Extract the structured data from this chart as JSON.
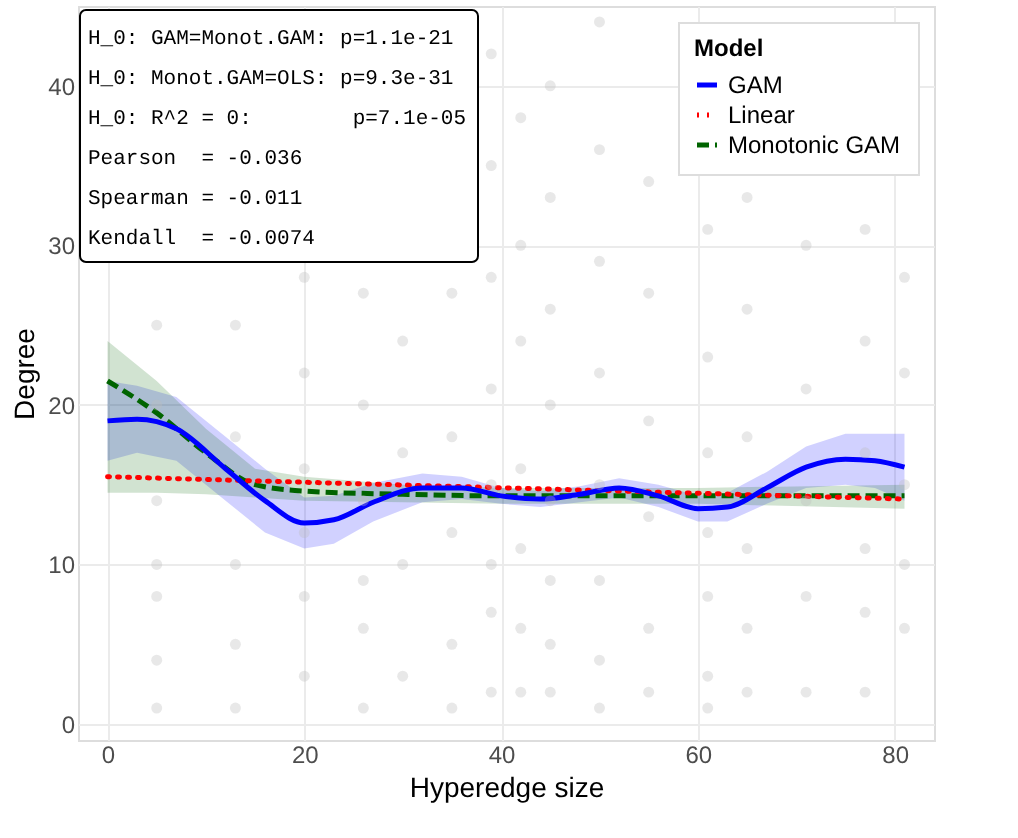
{
  "chart_data": {
    "type": "line",
    "xlabel": "Hyperedge size",
    "ylabel": "Degree",
    "legend_title": "Model",
    "xlim": [
      -3,
      84
    ],
    "ylim": [
      -1,
      45
    ],
    "xticks": [
      0,
      20,
      40,
      60,
      80
    ],
    "yticks": [
      0,
      10,
      20,
      30,
      40
    ],
    "grid": true,
    "legend": "top right",
    "annotations": [
      "H_0: GAM=Monot.GAM: p=1.1e-21",
      "H_0: Monot.GAM=OLS: p=9.3e-31",
      "H_0: R^2 = 0:        p=7.1e-05",
      "Pearson  = -0.036",
      "Spearman = -0.011",
      "Kendall  = -0.0074"
    ],
    "series": [
      {
        "type": "scatter",
        "color": "#bdbdbd",
        "marker": "circle",
        "x": [
          5,
          5,
          5,
          5,
          5,
          5,
          5,
          13,
          13,
          13,
          13,
          13,
          20,
          20,
          20,
          20,
          20,
          20,
          26,
          26,
          26,
          26,
          26,
          26,
          30,
          30,
          30,
          30,
          35,
          35,
          35,
          35,
          35,
          39,
          39,
          39,
          39,
          39,
          39,
          39,
          39,
          42,
          42,
          42,
          42,
          42,
          42,
          42,
          45,
          45,
          45,
          45,
          45,
          45,
          45,
          45,
          50,
          50,
          50,
          50,
          50,
          50,
          50,
          50,
          55,
          55,
          55,
          55,
          55,
          55,
          61,
          61,
          61,
          61,
          61,
          61,
          61,
          65,
          65,
          65,
          65,
          65,
          65,
          71,
          71,
          71,
          71,
          71,
          77,
          77,
          77,
          77,
          77,
          77,
          81,
          81,
          81,
          81,
          81
        ],
        "values": [
          1,
          4,
          8,
          10,
          14,
          20,
          25,
          1,
          5,
          10,
          18,
          25,
          3,
          8,
          12,
          16,
          22,
          28,
          1,
          6,
          9,
          14,
          20,
          27,
          3,
          10,
          17,
          24,
          1,
          5,
          12,
          18,
          27,
          2,
          7,
          10,
          15,
          21,
          28,
          35,
          42,
          2,
          6,
          11,
          16,
          24,
          30,
          38,
          2,
          5,
          9,
          14,
          20,
          26,
          33,
          40,
          1,
          4,
          9,
          15,
          22,
          29,
          36,
          44,
          2,
          6,
          13,
          19,
          27,
          34,
          1,
          3,
          8,
          12,
          17,
          23,
          31,
          2,
          6,
          11,
          18,
          26,
          33,
          2,
          8,
          14,
          21,
          30,
          2,
          7,
          11,
          17,
          24,
          31,
          6,
          10,
          15,
          22,
          28
        ]
      },
      {
        "name": "GAM",
        "color": "#0000ff",
        "line_style": "solid",
        "x": [
          0,
          3,
          7,
          12,
          16,
          20,
          23,
          27,
          32,
          36,
          40,
          44,
          48,
          52,
          56,
          60,
          63,
          67,
          71,
          75,
          78,
          81
        ],
        "values": [
          19,
          19.1,
          18.5,
          16,
          14,
          12.6,
          12.8,
          13.9,
          14.8,
          14.8,
          14.3,
          14.1,
          14.4,
          14.8,
          14.3,
          13.5,
          13.6,
          14.8,
          16.1,
          16.6,
          16.5,
          16.1
        ],
        "lower": [
          16.5,
          17,
          16.5,
          14,
          12,
          11,
          11.3,
          12.7,
          13.9,
          14.1,
          13.8,
          13.6,
          13.9,
          14.2,
          13.6,
          12.7,
          12.7,
          13.8,
          14.8,
          15,
          14.8,
          14
        ],
        "upper": [
          21.5,
          21.2,
          20.5,
          18,
          16,
          14.2,
          14.3,
          15.1,
          15.7,
          15.5,
          14.8,
          14.6,
          14.9,
          15.4,
          15,
          14.3,
          14.5,
          15.8,
          17.4,
          18.2,
          18.2,
          18.2
        ]
      },
      {
        "name": "Linear",
        "color": "#ff0000",
        "line_style": "dotted",
        "x": [
          0,
          81
        ],
        "values": [
          15.5,
          14.1
        ]
      },
      {
        "name": "Monotonic GAM",
        "color": "#006400",
        "line_style": "dashed",
        "x": [
          0,
          5,
          10,
          15,
          20,
          30,
          40,
          50,
          60,
          81
        ],
        "values": [
          21.5,
          19.5,
          17,
          15,
          14.6,
          14.4,
          14.3,
          14.3,
          14.3,
          14.3
        ],
        "lower": [
          14.5,
          14.5,
          14.4,
          14.2,
          14,
          13.9,
          13.8,
          13.8,
          13.8,
          13.5
        ],
        "upper": [
          24,
          21.5,
          18.5,
          16,
          15.5,
          15,
          14.8,
          14.8,
          14.8,
          15
        ]
      }
    ]
  }
}
